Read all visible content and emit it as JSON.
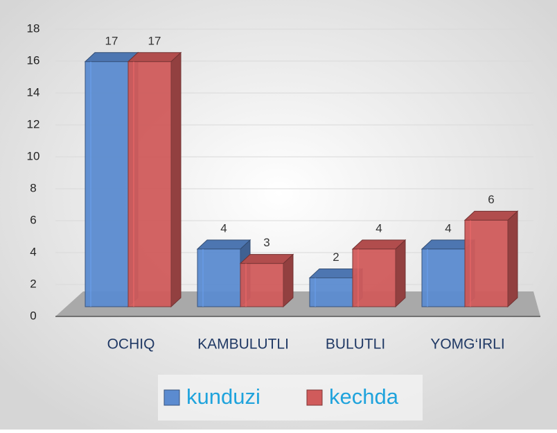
{
  "chart_data": {
    "type": "bar3d",
    "categories": [
      "OCHIQ",
      "KAMBULUTLI",
      "BULUTLI",
      "YOMG‘IRLI"
    ],
    "series": [
      {
        "name": "kunduzi",
        "color": "#5b8bd0",
        "values": [
          17,
          4,
          2,
          4
        ]
      },
      {
        "name": "kechda",
        "color": "#d05b5b",
        "values": [
          17,
          3,
          4,
          6
        ]
      }
    ],
    "ylim": [
      0,
      18
    ],
    "yticks": [
      0,
      2,
      4,
      6,
      8,
      10,
      12,
      14,
      16,
      18
    ],
    "grid": true,
    "legend": "bottom"
  }
}
